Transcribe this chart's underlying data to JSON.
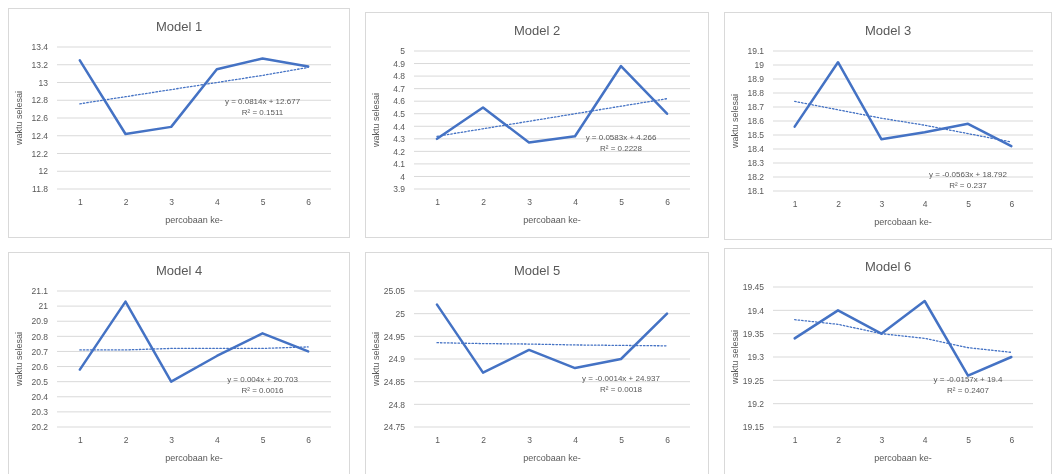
{
  "chart_data": [
    {
      "type": "line",
      "title": "Model 1",
      "xlabel": "percobaan ke-",
      "ylabel": "waktu selesai",
      "x": [
        1,
        2,
        3,
        4,
        5,
        6
      ],
      "xlim": [
        0.5,
        6.5
      ],
      "xticks": [
        1,
        2,
        3,
        4,
        5,
        6
      ],
      "ylim": [
        11.8,
        13.4
      ],
      "yticks": [
        11.8,
        12,
        12.2,
        12.4,
        12.6,
        12.8,
        13,
        13.2,
        13.4
      ],
      "grid": "y",
      "marker": "none",
      "series": [
        {
          "color": "#4472c4",
          "values": [
            13.25,
            12.42,
            12.5,
            13.15,
            13.27,
            13.18
          ]
        },
        {
          "type": "line",
          "values": [
            12.76,
            12.84,
            12.92,
            13.0,
            13.08,
            13.17
          ],
          "color": "#4472c4",
          "line_style": "dotted"
        }
      ],
      "annotations": [
        "y = 0.0814x + 12.677",
        "R² = 0.1511"
      ]
    },
    {
      "type": "line",
      "title": "Model 2",
      "xlabel": "percobaan ke-",
      "ylabel": "waktu selesai",
      "x": [
        1,
        2,
        3,
        4,
        5,
        6
      ],
      "xlim": [
        0.5,
        6.5
      ],
      "xticks": [
        1,
        2,
        3,
        4,
        5,
        6
      ],
      "ylim": [
        3.9,
        5
      ],
      "yticks": [
        3.9,
        4,
        4.1,
        4.2,
        4.3,
        4.4,
        4.5,
        4.6,
        4.7,
        4.8,
        4.9,
        5
      ],
      "grid": "y",
      "marker": "none",
      "series": [
        {
          "color": "#4472c4",
          "values": [
            4.3,
            4.55,
            4.27,
            4.32,
            4.88,
            4.5
          ]
        },
        {
          "type": "line",
          "values": [
            4.32,
            4.38,
            4.44,
            4.5,
            4.56,
            4.62
          ],
          "color": "#4472c4",
          "line_style": "dotted"
        }
      ],
      "annotations": [
        "y = 0.0583x + 4.266",
        "R² = 0.2228"
      ]
    },
    {
      "type": "line",
      "title": "Model 3",
      "xlabel": "percobaan ke-",
      "ylabel": "waktu selesai",
      "x": [
        1,
        2,
        3,
        4,
        5,
        6
      ],
      "xlim": [
        0.5,
        6.5
      ],
      "xticks": [
        1,
        2,
        3,
        4,
        5,
        6
      ],
      "ylim": [
        18.1,
        19.1
      ],
      "yticks": [
        18.1,
        18.2,
        18.3,
        18.4,
        18.5,
        18.6,
        18.7,
        18.8,
        18.9,
        19,
        19.1
      ],
      "grid": "y",
      "marker": "none",
      "series": [
        {
          "color": "#4472c4",
          "values": [
            18.56,
            19.02,
            18.47,
            18.52,
            18.58,
            18.42
          ]
        },
        {
          "type": "line",
          "values": [
            18.74,
            18.68,
            18.62,
            18.57,
            18.51,
            18.45
          ],
          "color": "#4472c4",
          "line_style": "dotted"
        }
      ],
      "annotations": [
        "y = -0.0563x + 18.792",
        "R² = 0.237"
      ]
    },
    {
      "type": "line",
      "title": "Model 4",
      "xlabel": "percobaan ke-",
      "ylabel": "waktu selesai",
      "x": [
        1,
        2,
        3,
        4,
        5,
        6
      ],
      "xlim": [
        0.5,
        6.5
      ],
      "xticks": [
        1,
        2,
        3,
        4,
        5,
        6
      ],
      "ylim": [
        20.2,
        21.1
      ],
      "yticks": [
        20.2,
        20.3,
        20.4,
        20.5,
        20.6,
        20.7,
        20.8,
        20.9,
        21,
        21.1
      ],
      "grid": "y",
      "marker": "none",
      "series": [
        {
          "color": "#4472c4",
          "values": [
            20.58,
            21.03,
            20.5,
            20.67,
            20.82,
            20.7
          ]
        },
        {
          "type": "line",
          "values": [
            20.71,
            20.71,
            20.72,
            20.72,
            20.72,
            20.73
          ],
          "color": "#4472c4",
          "line_style": "dotted"
        }
      ],
      "annotations": [
        "y = 0.004x + 20.703",
        "R² = 0.0016"
      ]
    },
    {
      "type": "line",
      "title": "Model 5",
      "xlabel": "percobaan ke-",
      "ylabel": "waktu selesai",
      "x": [
        1,
        2,
        3,
        4,
        5,
        6
      ],
      "xlim": [
        0.5,
        6.5
      ],
      "xticks": [
        1,
        2,
        3,
        4,
        5,
        6
      ],
      "ylim": [
        24.75,
        25.05
      ],
      "yticks": [
        24.75,
        24.8,
        24.85,
        24.9,
        24.95,
        25,
        25.05
      ],
      "grid": "y",
      "marker": "none",
      "series": [
        {
          "color": "#4472c4",
          "values": [
            25.02,
            24.87,
            24.92,
            24.88,
            24.9,
            25.0
          ]
        },
        {
          "type": "line",
          "values": [
            24.936,
            24.934,
            24.933,
            24.931,
            24.93,
            24.929
          ],
          "color": "#4472c4",
          "line_style": "dotted"
        }
      ],
      "annotations": [
        "y = -0.0014x + 24.937",
        "R² = 0.0018"
      ]
    },
    {
      "type": "line",
      "title": "Model 6",
      "xlabel": "percobaan ke-",
      "ylabel": "waktu selesai",
      "x": [
        1,
        2,
        3,
        4,
        5,
        6
      ],
      "xlim": [
        0.5,
        6.5
      ],
      "xticks": [
        1,
        2,
        3,
        4,
        5,
        6
      ],
      "ylim": [
        19.15,
        19.45
      ],
      "yticks": [
        19.15,
        19.2,
        19.25,
        19.3,
        19.35,
        19.4,
        19.45
      ],
      "grid": "y",
      "marker": "none",
      "series": [
        {
          "color": "#4472c4",
          "values": [
            19.34,
            19.4,
            19.35,
            19.42,
            19.26,
            19.3
          ]
        },
        {
          "type": "line",
          "values": [
            19.38,
            19.37,
            19.35,
            19.34,
            19.32,
            19.31
          ],
          "color": "#4472c4",
          "line_style": "dotted"
        }
      ],
      "annotations": [
        "y = -0.0157x + 19.4",
        "R² = 0.2407"
      ]
    }
  ]
}
